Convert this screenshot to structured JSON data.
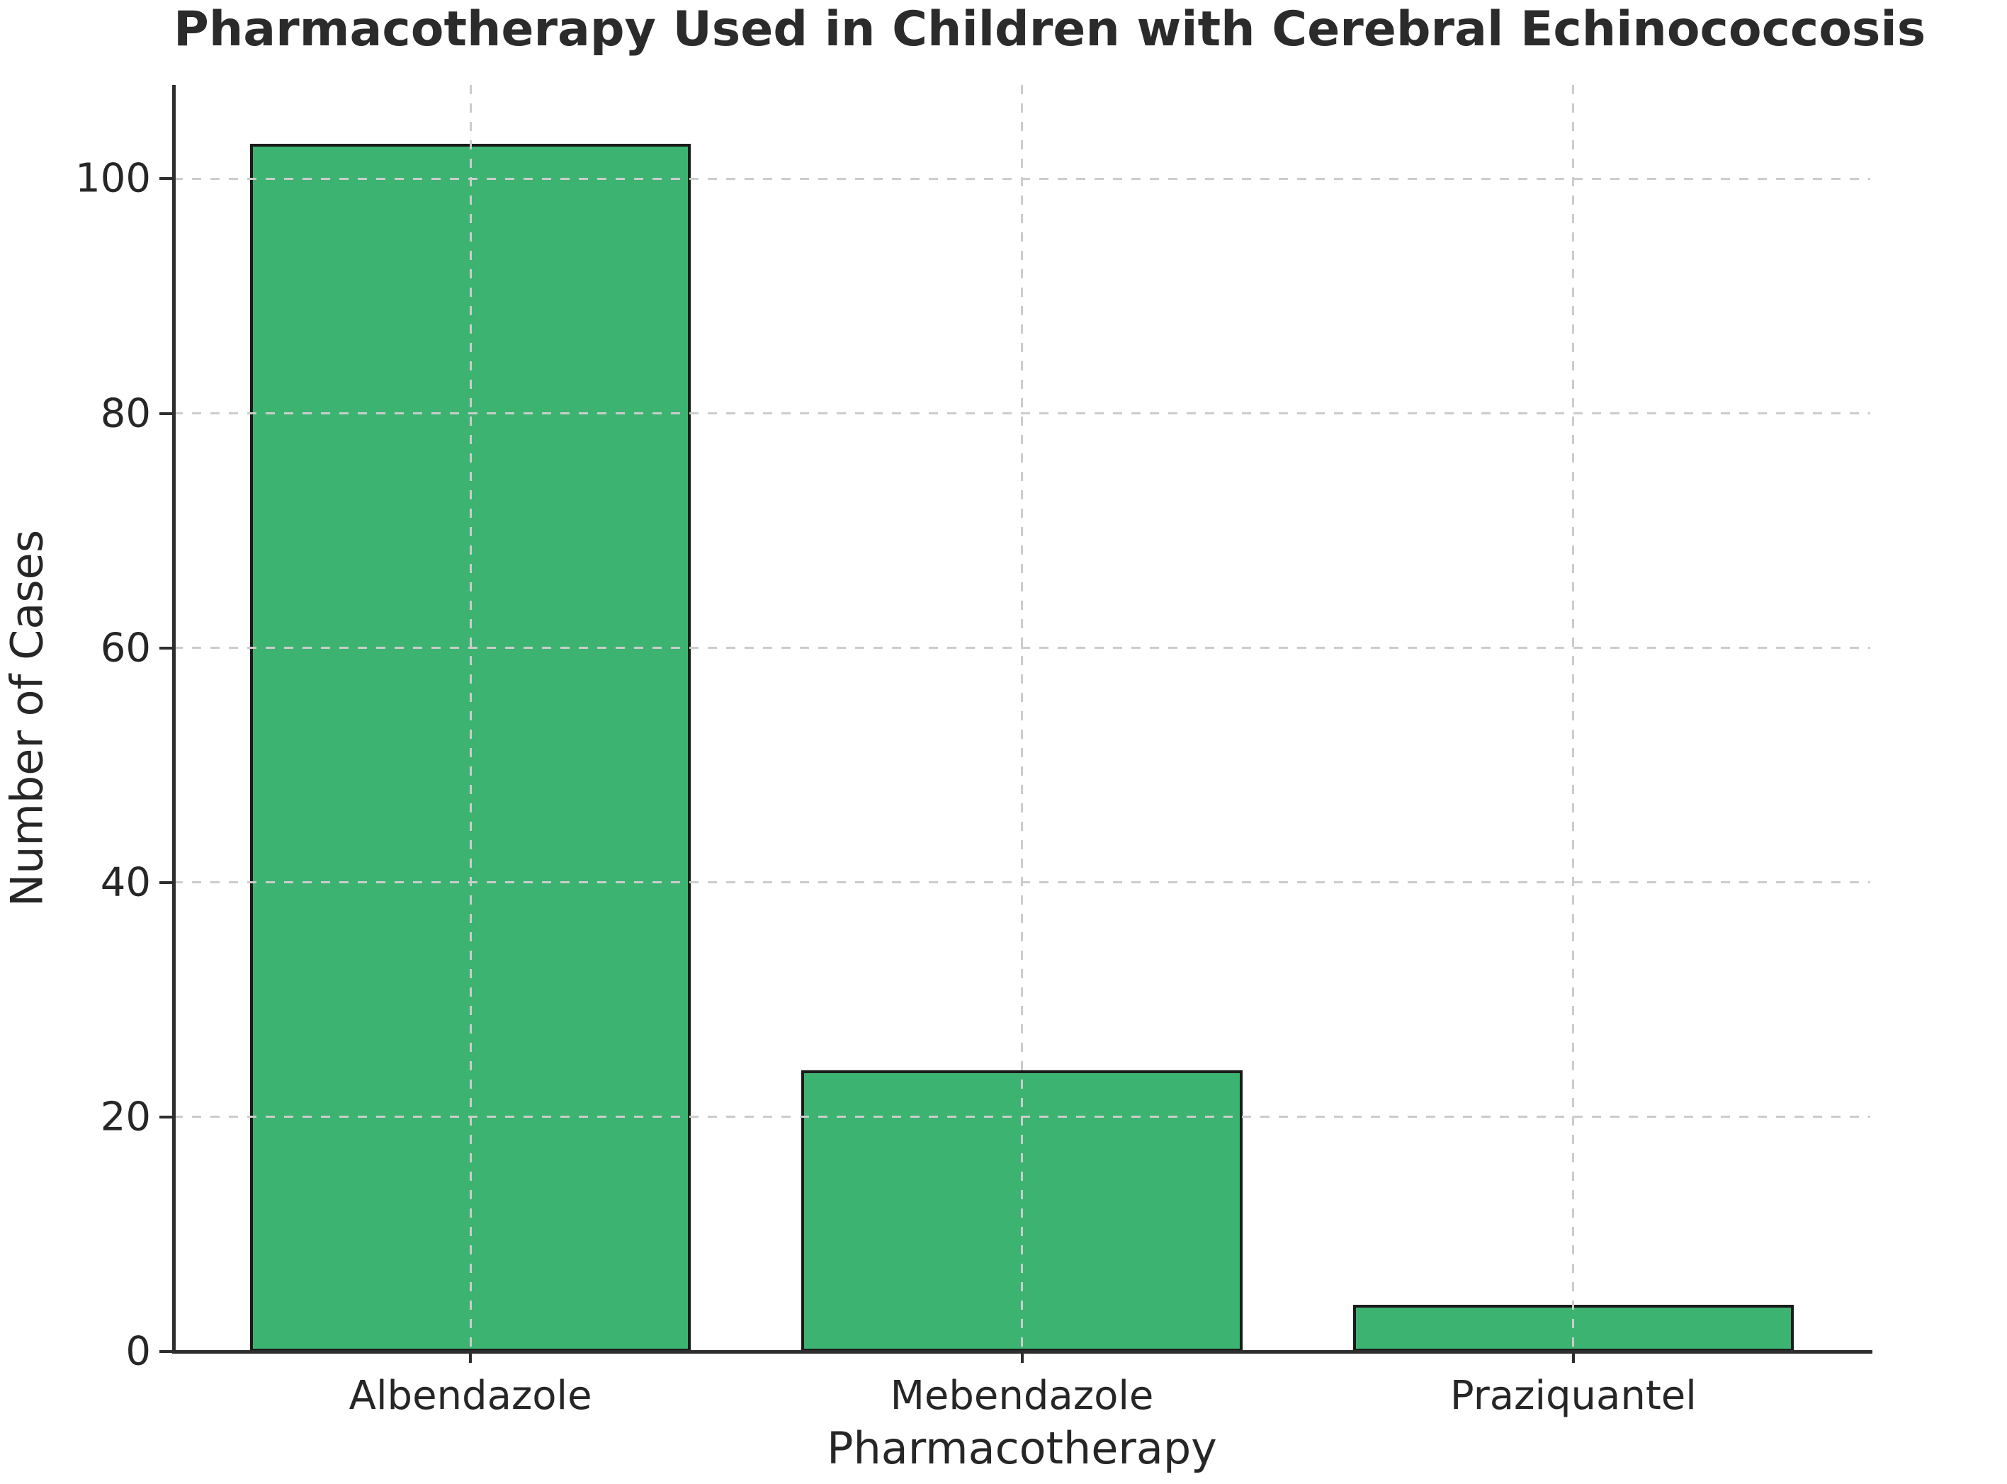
{
  "chart": {
    "title": "Pharmacotherapy Used in Children with Cerebral Echinococcosis",
    "xlabel": "Pharmacotherapy",
    "ylabel": "Number of Cases"
  },
  "chart_data": {
    "type": "bar",
    "title": "Pharmacotherapy Used in Children with Cerebral Echinococcosis",
    "xlabel": "Pharmacotherapy",
    "ylabel": "Number of Cases",
    "categories": [
      "Albendazole",
      "Mebendazole",
      "Praziquantel"
    ],
    "values": [
      103,
      24,
      4
    ],
    "yticks": [
      0,
      20,
      40,
      60,
      80,
      100
    ],
    "ylim": [
      0,
      108
    ],
    "grid": "dashed light-gray, horizontal at y-ticks and vertical at category centers, drawn over bars",
    "legend": "none",
    "bar_fill_color": "#3CB371",
    "bar_edge_color": "#1a1a1a",
    "spine_color": "#2e2e2e",
    "text_color": "#262626",
    "gridline_color": "#cccccc",
    "bar_width_fraction_of_slot": 0.8
  }
}
